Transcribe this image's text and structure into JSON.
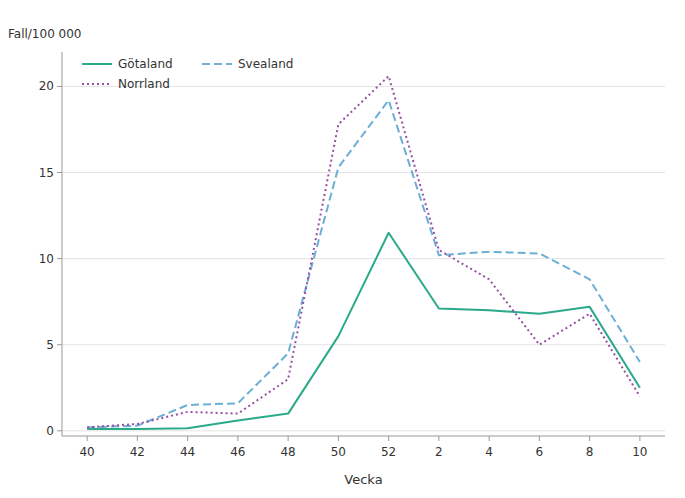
{
  "chart_data": {
    "type": "line",
    "x_label": "Vecka",
    "y_label": "Fall/100 000",
    "categories": [
      40,
      42,
      44,
      46,
      48,
      50,
      52,
      2,
      4,
      6,
      8,
      10
    ],
    "series": [
      {
        "name": "Götaland",
        "color": "#2aaa8a",
        "line_style": "solid",
        "values": [
          0.1,
          0.1,
          0.15,
          0.6,
          1.0,
          5.5,
          11.5,
          7.1,
          7.0,
          6.8,
          7.2,
          2.5
        ]
      },
      {
        "name": "Svealand",
        "color": "#6baed6",
        "line_style": "dashed",
        "values": [
          0.2,
          0.3,
          1.5,
          1.6,
          4.5,
          15.3,
          19.2,
          10.2,
          10.4,
          10.3,
          8.8,
          4.0
        ]
      },
      {
        "name": "Norrland",
        "color": "#984ea3",
        "line_style": "dotted",
        "values": [
          0.2,
          0.4,
          1.1,
          1.0,
          3.0,
          17.8,
          20.6,
          10.5,
          8.8,
          5.0,
          6.8,
          2.0
        ]
      }
    ],
    "ylim": [
      -0.3,
      22
    ],
    "yticks": [
      0,
      5,
      10,
      15,
      20
    ],
    "grid": true,
    "legend": "upper left"
  }
}
